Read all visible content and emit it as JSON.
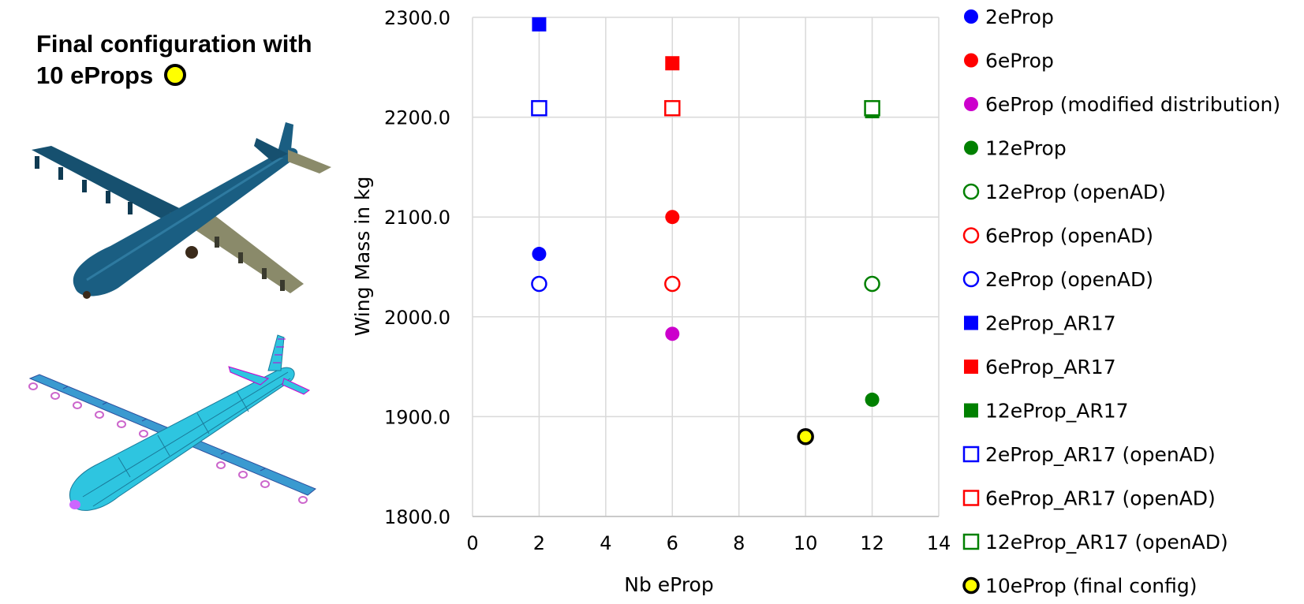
{
  "panel": {
    "title_line1": "Final configuration with",
    "title_line2": "10 eProps"
  },
  "images": [
    {
      "icon": "aircraft-3d-render-icon"
    },
    {
      "icon": "aircraft-fem-mesh-icon"
    }
  ],
  "chart_data": {
    "type": "scatter",
    "xlabel": "Nb eProp",
    "ylabel": "Wing Mass in kg",
    "xlim": [
      0,
      14
    ],
    "ylim": [
      1800,
      2300
    ],
    "xticks": [
      0,
      2,
      4,
      6,
      8,
      10,
      12,
      14
    ],
    "yticks": [
      1800.0,
      1900.0,
      2000.0,
      2100.0,
      2200.0,
      2300.0
    ],
    "ytick_labels": [
      "1800.0",
      "1900.0",
      "2000.0",
      "2100.0",
      "2200.0",
      "2300.0"
    ],
    "grid": true,
    "legend_position": "right",
    "series": [
      {
        "name": "2eProp",
        "marker": "circle",
        "fill": true,
        "color": "#0000ff",
        "points": [
          {
            "x": 2,
            "y": 2063
          }
        ]
      },
      {
        "name": "6eProp",
        "marker": "circle",
        "fill": true,
        "color": "#ff0000",
        "points": [
          {
            "x": 6,
            "y": 2100
          }
        ]
      },
      {
        "name": "6eProp (modified distribution)",
        "marker": "circle",
        "fill": true,
        "color": "#cc00cc",
        "points": [
          {
            "x": 6,
            "y": 1983
          }
        ]
      },
      {
        "name": "12eProp",
        "marker": "circle",
        "fill": true,
        "color": "#008000",
        "points": [
          {
            "x": 12,
            "y": 1917
          }
        ]
      },
      {
        "name": "12eProp (openAD)",
        "marker": "circle",
        "fill": false,
        "color": "#008000",
        "points": [
          {
            "x": 12,
            "y": 2033
          }
        ]
      },
      {
        "name": "6eProp (openAD)",
        "marker": "circle",
        "fill": false,
        "color": "#ff0000",
        "points": [
          {
            "x": 6,
            "y": 2033
          }
        ]
      },
      {
        "name": "2eProp (openAD)",
        "marker": "circle",
        "fill": false,
        "color": "#0000ff",
        "points": [
          {
            "x": 2,
            "y": 2033
          }
        ]
      },
      {
        "name": "2eProp_AR17",
        "marker": "square",
        "fill": true,
        "color": "#0000ff",
        "points": [
          {
            "x": 2,
            "y": 2293
          }
        ]
      },
      {
        "name": "6eProp_AR17",
        "marker": "square",
        "fill": true,
        "color": "#ff0000",
        "points": [
          {
            "x": 6,
            "y": 2254
          }
        ]
      },
      {
        "name": "12eProp_AR17",
        "marker": "square",
        "fill": true,
        "color": "#008000",
        "points": [
          {
            "x": 12,
            "y": 2206
          }
        ]
      },
      {
        "name": "2eProp_AR17 (openAD)",
        "marker": "square",
        "fill": false,
        "color": "#0000ff",
        "points": [
          {
            "x": 2,
            "y": 2209
          }
        ]
      },
      {
        "name": "6eProp_AR17 (openAD)",
        "marker": "square",
        "fill": false,
        "color": "#ff0000",
        "points": [
          {
            "x": 6,
            "y": 2209
          }
        ]
      },
      {
        "name": "12eProp_AR17 (openAD)",
        "marker": "square",
        "fill": false,
        "color": "#008000",
        "points": [
          {
            "x": 12,
            "y": 2209
          }
        ]
      },
      {
        "name": "10eProp (final config)",
        "marker": "circle",
        "fill": true,
        "color": "#ffff00",
        "edge": "#000000",
        "points": [
          {
            "x": 10,
            "y": 1880
          }
        ]
      }
    ]
  }
}
